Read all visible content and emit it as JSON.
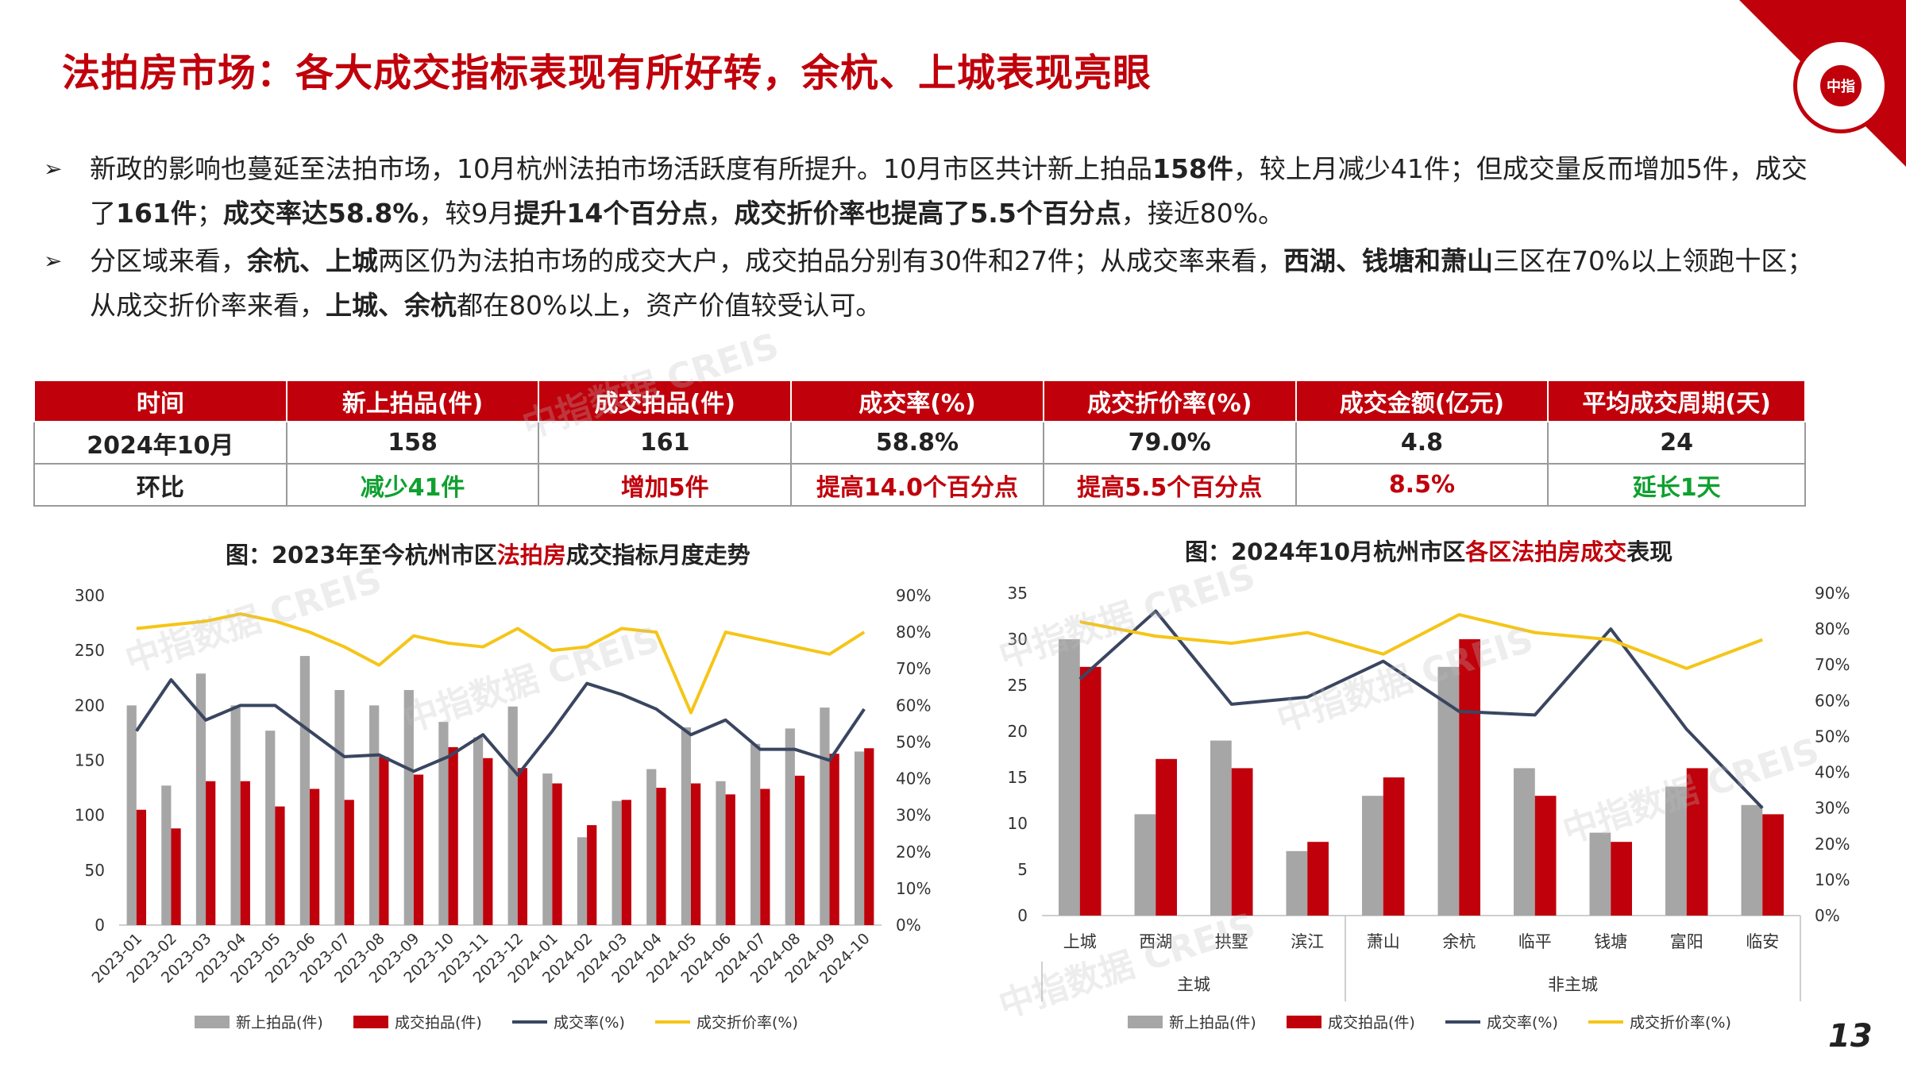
{
  "page": {
    "title": "法拍房市场：各大成交指标表现有所好转，余杭、上城表现亮眼",
    "page_number": "13",
    "watermark": "中指数据 CREIS",
    "logo_text": "中指"
  },
  "bullets": [
    {
      "parts": [
        {
          "t": "新政的影响也蔓延至法拍市场，10月杭州法拍市场活跃度有所提升。10月市区共计新上拍品",
          "b": false
        },
        {
          "t": "158件",
          "b": true
        },
        {
          "t": "，较上月减少41件；但成交量反而增加5件，成交了",
          "b": false
        },
        {
          "t": "161件",
          "b": true
        },
        {
          "t": "；",
          "b": false
        },
        {
          "t": "成交率达58.8%",
          "b": true
        },
        {
          "t": "，较9月",
          "b": false
        },
        {
          "t": "提升14个百分点",
          "b": true
        },
        {
          "t": "，",
          "b": false
        },
        {
          "t": "成交折价率也提高了5.5个百分点",
          "b": true
        },
        {
          "t": "，接近80%。",
          "b": false
        }
      ]
    },
    {
      "parts": [
        {
          "t": "分区域来看，",
          "b": false
        },
        {
          "t": "余杭、上城",
          "b": true
        },
        {
          "t": "两区仍为法拍市场的成交大户，成交拍品分别有30件和27件；从成交率来看，",
          "b": false
        },
        {
          "t": "西湖、钱塘和萧山",
          "b": true
        },
        {
          "t": "三区在70%以上领跑十区；从成交折价率来看，",
          "b": false
        },
        {
          "t": "上城、余杭",
          "b": true
        },
        {
          "t": "都在80%以上，资产价值较受认可。",
          "b": false
        }
      ]
    }
  ],
  "table": {
    "headers": [
      "时间",
      "新上拍品(件)",
      "成交拍品(件)",
      "成交率(%)",
      "成交折价率(%)",
      "成交金额(亿元)",
      "平均成交周期(天)"
    ],
    "rows": [
      {
        "cells": [
          "2024年10月",
          "158",
          "161",
          "58.8%",
          "79.0%",
          "4.8",
          "24"
        ],
        "colors": [
          "",
          "",
          "",
          "",
          "",
          "",
          ""
        ]
      },
      {
        "cells": [
          "环比",
          "减少41件",
          "增加5件",
          "提高14.0个百分点",
          "提高5.5个百分点",
          "8.5%",
          "延长1天"
        ],
        "colors": [
          "",
          "green",
          "red",
          "red",
          "red",
          "red",
          "green"
        ]
      }
    ]
  },
  "colors": {
    "brand_red": "#c0000b",
    "gray_bar": "#a6a6a6",
    "red_bar": "#c0000b",
    "navy_line": "#3a4660",
    "gold_line": "#f5c518",
    "positive_green": "#10a030"
  },
  "chart_data": [
    {
      "type": "bar",
      "title_parts": [
        {
          "t": "图：2023年至今杭州市区",
          "hl": false
        },
        {
          "t": "法拍房",
          "hl": true
        },
        {
          "t": "成交指标月度走势",
          "hl": false
        }
      ],
      "categories": [
        "2023-01",
        "2023-02",
        "2023-03",
        "2023-04",
        "2023-05",
        "2023-06",
        "2023-07",
        "2023-08",
        "2023-09",
        "2023-10",
        "2023-11",
        "2023-12",
        "2024-01",
        "2024-02",
        "2024-03",
        "2024-04",
        "2024-05",
        "2024-06",
        "2024-07",
        "2024-08",
        "2024-09",
        "2024-10"
      ],
      "series": [
        {
          "name": "新上拍品(件)",
          "kind": "bar",
          "axis": "left",
          "color": "#a6a6a6",
          "values": [
            200,
            127,
            229,
            200,
            177,
            245,
            214,
            200,
            214,
            185,
            171,
            199,
            138,
            80,
            113,
            142,
            180,
            131,
            165,
            179,
            198,
            158
          ]
        },
        {
          "name": "成交拍品(件)",
          "kind": "bar",
          "axis": "left",
          "color": "#c0000b",
          "values": [
            105,
            88,
            131,
            131,
            108,
            124,
            114,
            153,
            137,
            162,
            152,
            143,
            129,
            91,
            114,
            125,
            129,
            119,
            124,
            136,
            156,
            161
          ]
        },
        {
          "name": "成交率(%)",
          "kind": "line",
          "axis": "right",
          "color": "#3a4660",
          "values": [
            53,
            67,
            56,
            60,
            60,
            53,
            46,
            46.5,
            42,
            46,
            52,
            41,
            53,
            66,
            63,
            59,
            52,
            56,
            48,
            48,
            45,
            59
          ]
        },
        {
          "name": "成交折价率(%)",
          "kind": "line",
          "axis": "right",
          "color": "#f5c518",
          "values": [
            81,
            82,
            83,
            85,
            83,
            80,
            76,
            71,
            79,
            77,
            76,
            81,
            75,
            76,
            81,
            80,
            58,
            80,
            78,
            76,
            74,
            80
          ]
        }
      ],
      "ylim_left": [
        0,
        300
      ],
      "yticks_left": [
        "0",
        "50",
        "100",
        "150",
        "200",
        "250",
        "300"
      ],
      "ylim_right": [
        0,
        90
      ],
      "yticks_right": [
        "0%",
        "10%",
        "20%",
        "30%",
        "40%",
        "50%",
        "60%",
        "70%",
        "80%",
        "90%"
      ],
      "legend_position": "bottom"
    },
    {
      "type": "bar",
      "title_parts": [
        {
          "t": "图：2024年10月杭州市区",
          "hl": false
        },
        {
          "t": "各区法拍房成交",
          "hl": true
        },
        {
          "t": "表现",
          "hl": false
        }
      ],
      "categories": [
        "上城",
        "西湖",
        "拱墅",
        "滨江",
        "萧山",
        "余杭",
        "临平",
        "钱塘",
        "富阳",
        "临安"
      ],
      "groups": [
        {
          "label": "主城",
          "count": 4
        },
        {
          "label": "非主城",
          "count": 6
        }
      ],
      "series": [
        {
          "name": "新上拍品(件)",
          "kind": "bar",
          "axis": "left",
          "color": "#a6a6a6",
          "values": [
            30,
            11,
            19,
            7,
            13,
            27,
            16,
            9,
            14,
            12
          ]
        },
        {
          "name": "成交拍品(件)",
          "kind": "bar",
          "axis": "left",
          "color": "#c0000b",
          "values": [
            27,
            17,
            16,
            8,
            15,
            30,
            13,
            8,
            16,
            11
          ]
        },
        {
          "name": "成交率(%)",
          "kind": "line",
          "axis": "right",
          "color": "#3a4660",
          "values": [
            66,
            85,
            59,
            61,
            71,
            57,
            56,
            80,
            52,
            30
          ]
        },
        {
          "name": "成交折价率(%)",
          "kind": "line",
          "axis": "right",
          "color": "#f5c518",
          "values": [
            82,
            78,
            76,
            79,
            73,
            84,
            79,
            77,
            69,
            77
          ]
        }
      ],
      "ylim_left": [
        0,
        35
      ],
      "yticks_left": [
        "0",
        "5",
        "10",
        "15",
        "20",
        "25",
        "30",
        "35"
      ],
      "ylim_right": [
        0,
        90
      ],
      "yticks_right": [
        "0%",
        "10%",
        "20%",
        "30%",
        "40%",
        "50%",
        "60%",
        "70%",
        "80%",
        "90%"
      ],
      "legend_position": "bottom"
    }
  ]
}
